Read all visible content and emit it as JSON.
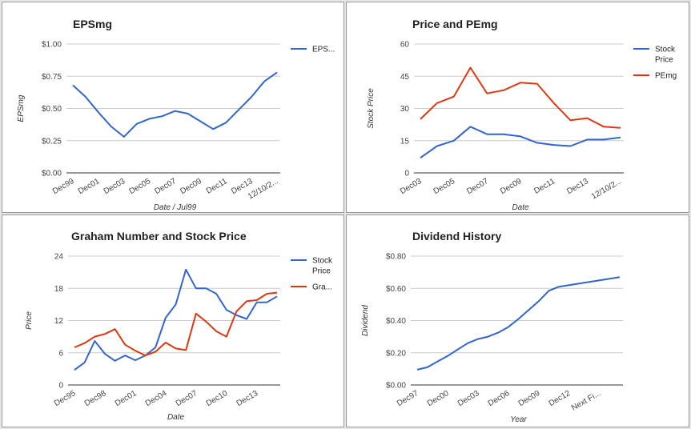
{
  "chart_data": [
    {
      "type": "line",
      "title": "EPSmg",
      "xlabel": "Date / Jul99",
      "ylabel": "EPSmg",
      "y_ticks": [
        "$0.00",
        "$0.25",
        "$0.50",
        "$0.75",
        "$1.00"
      ],
      "ylim": [
        0,
        1
      ],
      "x_tick_labels": [
        "Dec99",
        "Dec01",
        "Dec03",
        "Dec05",
        "Dec07",
        "Dec09",
        "Dec11",
        "Dec13",
        "12/10/2..."
      ],
      "x_tick_index": [
        0,
        2,
        4,
        6,
        8,
        10,
        12,
        14,
        16
      ],
      "legend_position": "right",
      "series": [
        {
          "name": "EPS...",
          "color": "#3366cc",
          "values": [
            0.68,
            0.59,
            0.47,
            0.36,
            0.28,
            0.38,
            0.42,
            0.44,
            0.48,
            0.46,
            0.4,
            0.34,
            0.39,
            0.49,
            0.59,
            0.71,
            0.78
          ]
        }
      ]
    },
    {
      "type": "line",
      "title": "Price and PEmg",
      "xlabel": "Date",
      "ylabel": "Stock Price",
      "y_ticks": [
        "0",
        "15",
        "30",
        "45",
        "60"
      ],
      "ylim": [
        0,
        60
      ],
      "x_tick_labels": [
        "Dec03",
        "Dec05",
        "Dec07",
        "Dec09",
        "Dec11",
        "Dec13",
        "12/10/2..."
      ],
      "x_tick_index": [
        0,
        2,
        4,
        6,
        8,
        10,
        12
      ],
      "legend_position": "right",
      "series": [
        {
          "name": "Stock Price",
          "color": "#3366cc",
          "values": [
            7,
            12.5,
            15,
            21.5,
            18,
            18,
            17,
            14,
            13,
            12.5,
            15.5,
            15.5,
            16.5
          ]
        },
        {
          "name": "PEmg",
          "color": "#dc3912",
          "values": [
            25,
            32.5,
            35.5,
            49,
            37,
            38.5,
            42,
            41.5,
            32.5,
            24.5,
            25.5,
            21.5,
            21
          ]
        }
      ]
    },
    {
      "type": "line",
      "title": "Graham Number and Stock Price",
      "xlabel": "Date",
      "ylabel": "Price",
      "y_ticks": [
        "0",
        "6",
        "12",
        "18",
        "24"
      ],
      "ylim": [
        0,
        24
      ],
      "x_tick_labels": [
        "Dec95",
        "Dec98",
        "Dec01",
        "Dec04",
        "Dec07",
        "Dec10",
        "Dec13"
      ],
      "x_tick_index": [
        0,
        3,
        6,
        9,
        12,
        15,
        18
      ],
      "legend_position": "right",
      "series": [
        {
          "name": "Stock Price",
          "color": "#3366cc",
          "values": [
            2.8,
            4.2,
            8.2,
            5.8,
            4.5,
            5.5,
            4.6,
            5.5,
            7,
            12.5,
            15,
            21.5,
            18,
            18,
            17,
            14,
            13,
            12.3,
            15.4,
            15.4,
            16.5
          ]
        },
        {
          "name": "Gra...",
          "color": "#dc3912",
          "values": [
            7,
            7.8,
            9,
            9.5,
            10.4,
            7.5,
            6.4,
            5.5,
            6.2,
            7.9,
            6.8,
            6.5,
            13.3,
            11.8,
            10,
            9,
            13.7,
            15.6,
            15.8,
            17,
            17.2
          ]
        }
      ]
    },
    {
      "type": "line",
      "title": "Dividend History",
      "xlabel": "Year",
      "ylabel": "Dividend",
      "y_ticks": [
        "$0.00",
        "$0.20",
        "$0.40",
        "$0.60",
        "$0.80"
      ],
      "ylim": [
        0,
        0.8
      ],
      "x_tick_labels": [
        "Dec97",
        "Dec00",
        "Dec03",
        "Dec06",
        "Dec09",
        "Dec12",
        "Next Fi..."
      ],
      "x_tick_index": [
        0,
        3,
        6,
        9,
        12,
        15,
        18
      ],
      "legend_position": "none",
      "series": [
        {
          "name": "",
          "color": "#3366cc",
          "values": [
            0.095,
            0.11,
            0.145,
            0.18,
            0.22,
            0.26,
            0.285,
            0.3,
            0.325,
            0.36,
            0.41,
            0.465,
            0.52,
            0.585,
            0.61,
            0.62,
            0.63,
            0.64,
            0.65,
            0.66,
            0.67
          ]
        }
      ]
    }
  ]
}
